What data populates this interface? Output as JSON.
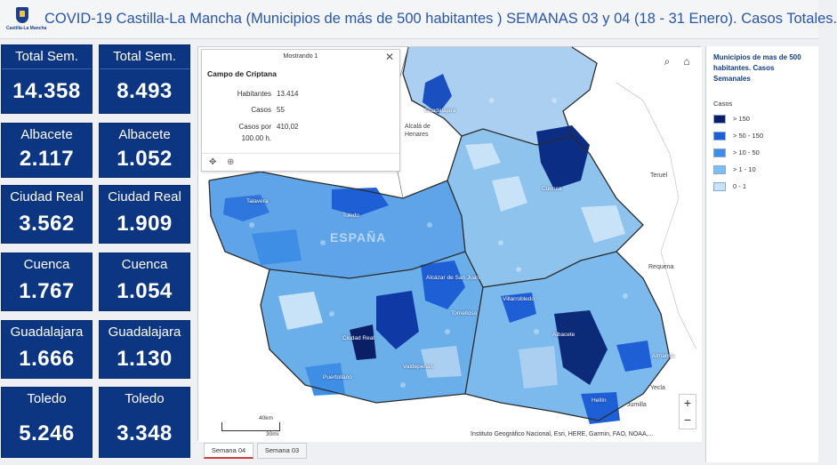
{
  "header": {
    "title": "COVID-19 Castilla-La Mancha (Municipios de más de 500 habitantes ) SEMANAS 03 y 04 (18 - 31 Enero). Casos Totales.",
    "logo_text": "Castilla-La Mancha"
  },
  "tiles": [
    {
      "label": "Total Sem.",
      "value": "14.358"
    },
    {
      "label": "Total Sem.",
      "value": "8.493"
    },
    {
      "label": "Albacete",
      "value": "2.117"
    },
    {
      "label": "Albacete",
      "value": "1.052"
    },
    {
      "label": "Ciudad Real",
      "value": "3.562"
    },
    {
      "label": "Ciudad Real",
      "value": "1.909"
    },
    {
      "label": "Cuenca",
      "value": "1.767"
    },
    {
      "label": "Cuenca",
      "value": "1.054"
    },
    {
      "label": "Guadalajara",
      "value": "1.666"
    },
    {
      "label": "Guadalajara",
      "value": "1.130"
    },
    {
      "label": "Toledo",
      "value": "5.246"
    },
    {
      "label": "Toledo",
      "value": "3.348"
    }
  ],
  "popup": {
    "header": "Mostrando 1",
    "name": "Campo de Criptana",
    "fields": [
      {
        "key": "Habitantes",
        "value": "13.414"
      },
      {
        "key": "Casos",
        "value": "55"
      },
      {
        "key": "Casos por",
        "value": "410,02"
      },
      {
        "key": "100.00 h.",
        "value": ""
      }
    ]
  },
  "map": {
    "cities": [
      "Alcalá de",
      "Henares",
      "Teruel",
      "Requena",
      "Yecla",
      "Jumilla"
    ],
    "places": [
      "Guadalajara",
      "Cuenca",
      "Toledo",
      "Talavera",
      "Alcázar de San Juan",
      "Tomelloso",
      "Villarrobledo",
      "Ciudad Real",
      "Valdepeñas",
      "Puertollano",
      "Albacete",
      "Almansa",
      "Hellín"
    ],
    "region_label": "ESPAÑA",
    "scale_top": "40km",
    "scale_bottom": "30mi",
    "attribution": "Instituto Geográfico Nacional, Esri, HERE, Garmin, FAO, NOAA,..."
  },
  "tabs": [
    {
      "label": "Semana 04",
      "active": true
    },
    {
      "label": "Semana 03",
      "active": false
    }
  ],
  "legend": {
    "title": "Municipios de mas de 500 habitantes. Casos Semanales",
    "subtitle": "Casos",
    "items": [
      {
        "label": "> 150",
        "color": "#0b1f66"
      },
      {
        "label": "> 50 - 150",
        "color": "#1f5fd6"
      },
      {
        "label": "> 10 - 50",
        "color": "#3f8ee6"
      },
      {
        "label": "> 1 - 10",
        "color": "#7ebeee"
      },
      {
        "label": "0 - 1",
        "color": "#c8e2f7"
      }
    ]
  }
}
